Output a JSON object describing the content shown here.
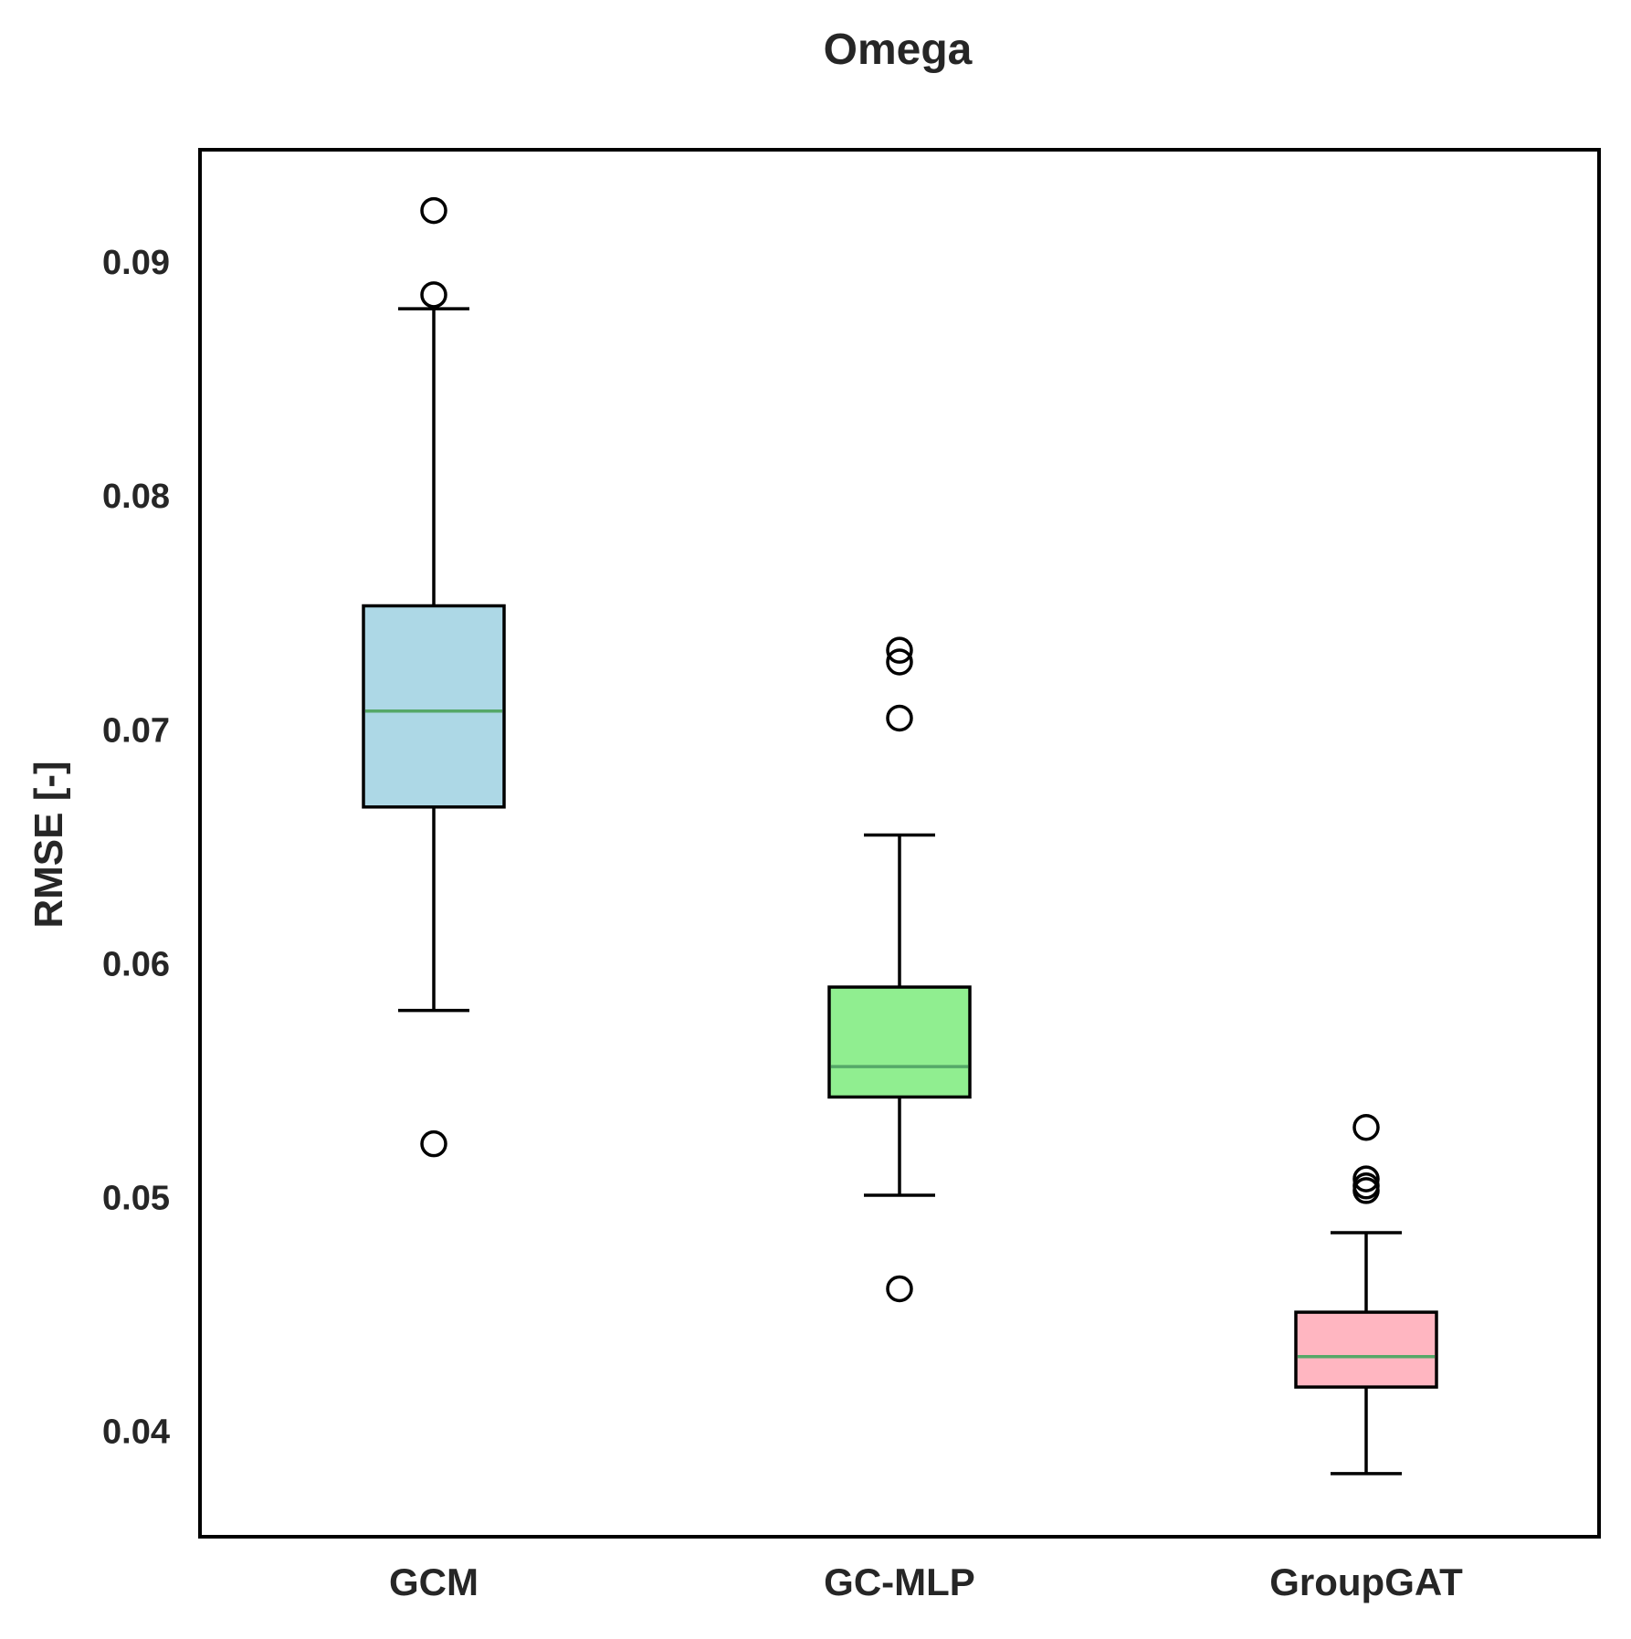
{
  "chart_data": {
    "type": "box",
    "title": "Omega",
    "xlabel": "",
    "ylabel": "RMSE [-]",
    "ylim": [
      0.0355,
      0.0948
    ],
    "yticks": [
      0.04,
      0.05,
      0.06,
      0.07,
      0.08,
      0.09
    ],
    "ytick_labels": [
      "0.04",
      "0.05",
      "0.06",
      "0.07",
      "0.08",
      "0.09"
    ],
    "grid": false,
    "categories": [
      "GCM",
      "GC-MLP",
      "GroupGAT"
    ],
    "boxes": [
      {
        "category": "GCM",
        "whisker_low": 0.058,
        "q1": 0.0667,
        "median": 0.0708,
        "q3": 0.0753,
        "whisker_high": 0.088,
        "outliers": [
          0.0922,
          0.0886,
          0.0523
        ],
        "color": "#add8e6"
      },
      {
        "category": "GC-MLP",
        "whisker_low": 0.0501,
        "q1": 0.0543,
        "median": 0.0556,
        "q3": 0.059,
        "whisker_high": 0.0655,
        "outliers": [
          0.0734,
          0.0729,
          0.0705,
          0.0461
        ],
        "color": "#90ee90"
      },
      {
        "category": "GroupGAT",
        "whisker_low": 0.0382,
        "q1": 0.0419,
        "median": 0.0432,
        "q3": 0.0451,
        "whisker_high": 0.0485,
        "outliers": [
          0.053,
          0.0508,
          0.0505,
          0.0503
        ],
        "color": "#ffb6c1"
      }
    ],
    "median_color": "#55a868",
    "edge_color": "#000000"
  }
}
